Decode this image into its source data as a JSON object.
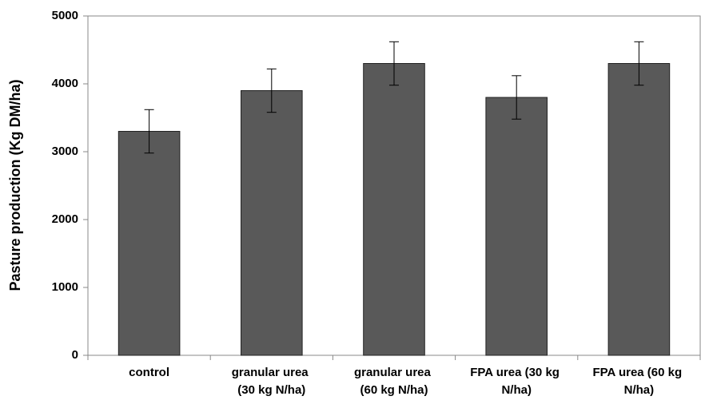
{
  "chart_data": {
    "type": "bar",
    "y_label": "Pasture production (Kg DM/ha)",
    "categories": [
      "control",
      "granular urea (30 kg N/ha)",
      "granular urea (60 kg N/ha)",
      "FPA urea (30 kg N/ha)",
      "FPA urea (60 kg N/ha)"
    ],
    "values": [
      3300,
      3900,
      4300,
      3800,
      4300
    ],
    "errors": [
      320,
      320,
      320,
      320,
      320
    ],
    "color": "#595959",
    "ylim": [
      0,
      5000
    ],
    "yticks": [
      0,
      1000,
      2000,
      3000,
      4000,
      5000
    ],
    "grid": false
  }
}
